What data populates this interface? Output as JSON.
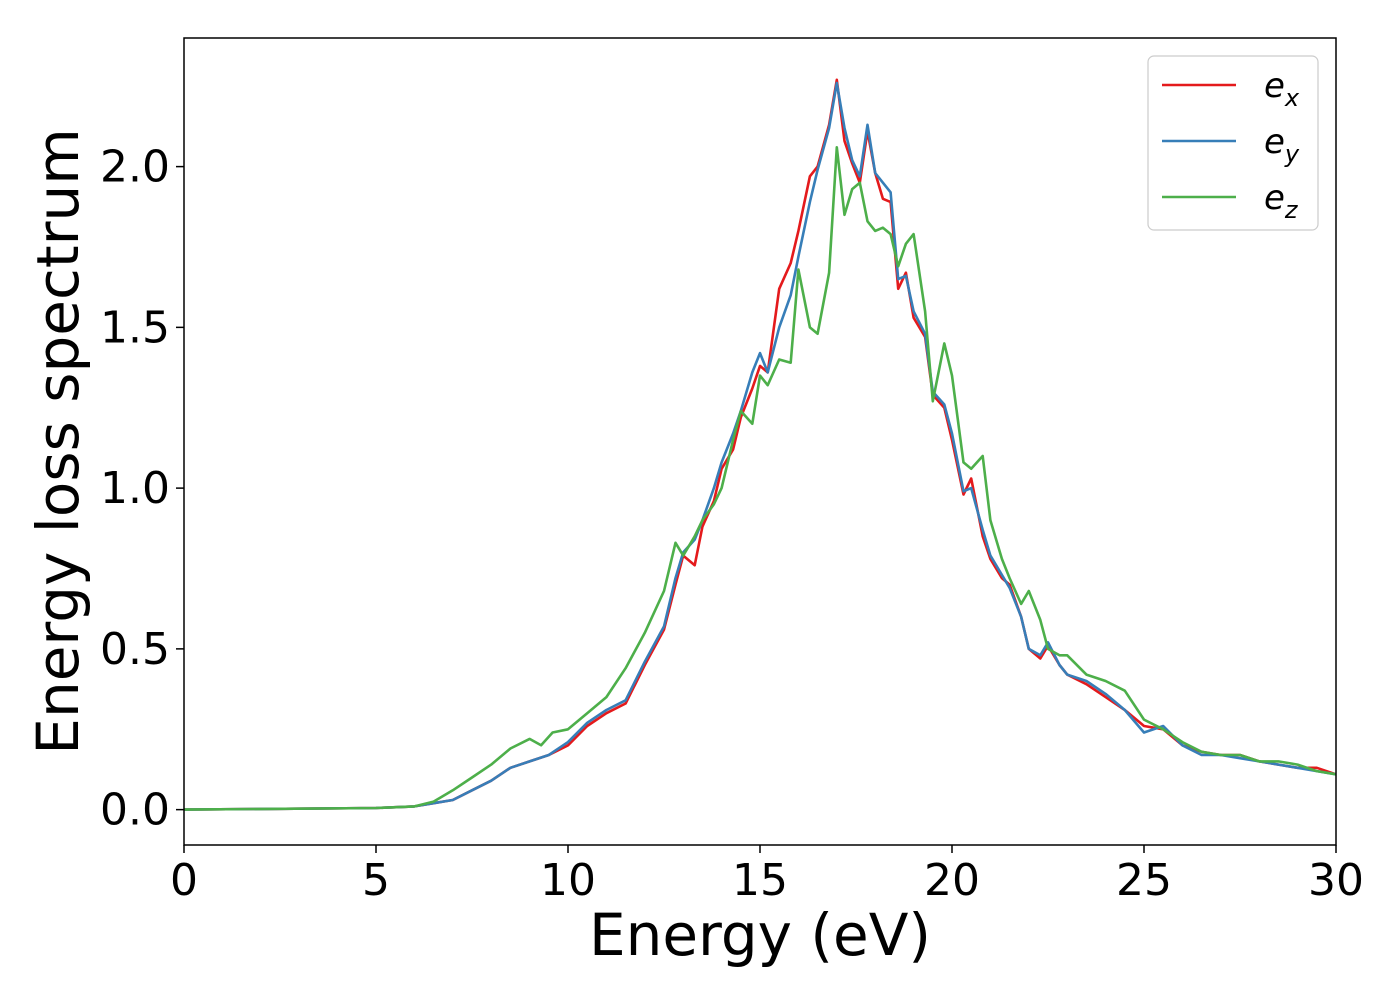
{
  "chart_data": {
    "type": "line",
    "title": "",
    "xlabel": "Energy (eV)",
    "ylabel": "Energy loss spectrum",
    "xlim": [
      0,
      30
    ],
    "ylim": [
      -0.11,
      2.4
    ],
    "xticks": [
      0,
      5,
      10,
      15,
      20,
      25,
      30
    ],
    "xtick_labels": [
      "0",
      "5",
      "10",
      "15",
      "20",
      "25",
      "30"
    ],
    "yticks": [
      0.0,
      0.5,
      1.0,
      1.5,
      2.0
    ],
    "ytick_labels": [
      "0.0",
      "0.5",
      "1.0",
      "1.5",
      "2.0"
    ],
    "grid": false,
    "legend_position": "top-right",
    "series": [
      {
        "name": "e_x",
        "color": "#e41a1c",
        "x": [
          0,
          5,
          6,
          6.5,
          7,
          7.5,
          8,
          8.5,
          9,
          9.5,
          10,
          10.5,
          11,
          11.5,
          12,
          12.5,
          12.8,
          13,
          13.3,
          13.5,
          13.8,
          14,
          14.3,
          14.5,
          14.8,
          15,
          15.2,
          15.5,
          15.8,
          16,
          16.3,
          16.5,
          16.8,
          17,
          17.2,
          17.4,
          17.6,
          17.8,
          18,
          18.2,
          18.4,
          18.6,
          18.8,
          19,
          19.3,
          19.5,
          19.8,
          20,
          20.3,
          20.5,
          20.8,
          21,
          21.3,
          21.5,
          21.8,
          22,
          22.3,
          22.5,
          22.8,
          23,
          23.5,
          24,
          24.5,
          25,
          25.5,
          26,
          26.5,
          27,
          27.5,
          28,
          28.5,
          29,
          29.5,
          30
        ],
        "y": [
          0,
          0.005,
          0.01,
          0.02,
          0.03,
          0.06,
          0.09,
          0.13,
          0.15,
          0.17,
          0.2,
          0.26,
          0.3,
          0.33,
          0.45,
          0.56,
          0.7,
          0.79,
          0.76,
          0.88,
          0.96,
          1.06,
          1.12,
          1.22,
          1.31,
          1.38,
          1.36,
          1.62,
          1.7,
          1.8,
          1.97,
          2.0,
          2.13,
          2.27,
          2.08,
          2.01,
          1.95,
          2.11,
          1.98,
          1.9,
          1.89,
          1.62,
          1.67,
          1.53,
          1.47,
          1.29,
          1.25,
          1.15,
          0.98,
          1.03,
          0.85,
          0.78,
          0.72,
          0.7,
          0.6,
          0.5,
          0.47,
          0.51,
          0.45,
          0.42,
          0.39,
          0.35,
          0.31,
          0.26,
          0.25,
          0.2,
          0.18,
          0.17,
          0.17,
          0.15,
          0.14,
          0.13,
          0.13,
          0.11
        ]
      },
      {
        "name": "e_y",
        "color": "#377eb8",
        "x": [
          0,
          5,
          6,
          6.5,
          7,
          7.5,
          8,
          8.5,
          9,
          9.5,
          10,
          10.5,
          11,
          11.5,
          12,
          12.5,
          12.8,
          13,
          13.3,
          13.5,
          13.8,
          14,
          14.3,
          14.5,
          14.8,
          15,
          15.2,
          15.5,
          15.8,
          16,
          16.3,
          16.5,
          16.8,
          17,
          17.2,
          17.4,
          17.6,
          17.8,
          18,
          18.2,
          18.4,
          18.6,
          18.8,
          19,
          19.3,
          19.5,
          19.8,
          20,
          20.3,
          20.5,
          20.8,
          21,
          21.3,
          21.5,
          21.8,
          22,
          22.3,
          22.5,
          22.8,
          23,
          23.5,
          24,
          24.5,
          25,
          25.5,
          26,
          26.5,
          27,
          27.5,
          28,
          28.5,
          29,
          29.5,
          30
        ],
        "y": [
          0,
          0.005,
          0.01,
          0.02,
          0.03,
          0.06,
          0.09,
          0.13,
          0.15,
          0.17,
          0.21,
          0.27,
          0.31,
          0.34,
          0.46,
          0.57,
          0.72,
          0.8,
          0.84,
          0.9,
          1.0,
          1.08,
          1.17,
          1.24,
          1.36,
          1.42,
          1.36,
          1.5,
          1.6,
          1.72,
          1.89,
          1.99,
          2.12,
          2.26,
          2.12,
          2.02,
          1.97,
          2.13,
          1.98,
          1.95,
          1.92,
          1.65,
          1.66,
          1.55,
          1.48,
          1.3,
          1.26,
          1.17,
          0.99,
          1.0,
          0.87,
          0.79,
          0.73,
          0.69,
          0.6,
          0.5,
          0.48,
          0.52,
          0.45,
          0.42,
          0.4,
          0.36,
          0.31,
          0.24,
          0.26,
          0.2,
          0.17,
          0.17,
          0.16,
          0.15,
          0.14,
          0.13,
          0.12,
          0.11
        ]
      },
      {
        "name": "e_z",
        "color": "#4daf4a",
        "x": [
          0,
          5,
          6,
          6.5,
          7,
          7.5,
          8,
          8.5,
          9,
          9.3,
          9.6,
          10,
          10.5,
          11,
          11.5,
          12,
          12.5,
          12.8,
          13,
          13.3,
          13.5,
          13.8,
          14,
          14.3,
          14.5,
          14.8,
          15,
          15.2,
          15.5,
          15.8,
          16,
          16.3,
          16.5,
          16.8,
          17,
          17.2,
          17.4,
          17.6,
          17.8,
          18,
          18.2,
          18.4,
          18.6,
          18.8,
          19,
          19.3,
          19.5,
          19.8,
          20,
          20.3,
          20.5,
          20.8,
          21,
          21.3,
          21.5,
          21.8,
          22,
          22.3,
          22.5,
          22.8,
          23,
          23.5,
          24,
          24.5,
          25,
          25.5,
          26,
          26.5,
          27,
          27.5,
          28,
          28.5,
          29,
          29.5,
          30
        ],
        "y": [
          0,
          0.005,
          0.01,
          0.025,
          0.06,
          0.1,
          0.14,
          0.19,
          0.22,
          0.2,
          0.24,
          0.25,
          0.3,
          0.35,
          0.44,
          0.55,
          0.68,
          0.83,
          0.79,
          0.85,
          0.9,
          0.95,
          1.0,
          1.15,
          1.24,
          1.2,
          1.35,
          1.32,
          1.4,
          1.39,
          1.68,
          1.5,
          1.48,
          1.67,
          2.06,
          1.85,
          1.93,
          1.95,
          1.83,
          1.8,
          1.81,
          1.79,
          1.69,
          1.76,
          1.79,
          1.55,
          1.27,
          1.45,
          1.35,
          1.08,
          1.06,
          1.1,
          0.9,
          0.78,
          0.72,
          0.64,
          0.68,
          0.59,
          0.5,
          0.48,
          0.48,
          0.42,
          0.4,
          0.37,
          0.28,
          0.25,
          0.21,
          0.18,
          0.17,
          0.17,
          0.15,
          0.15,
          0.14,
          0.12,
          0.11
        ]
      }
    ]
  }
}
